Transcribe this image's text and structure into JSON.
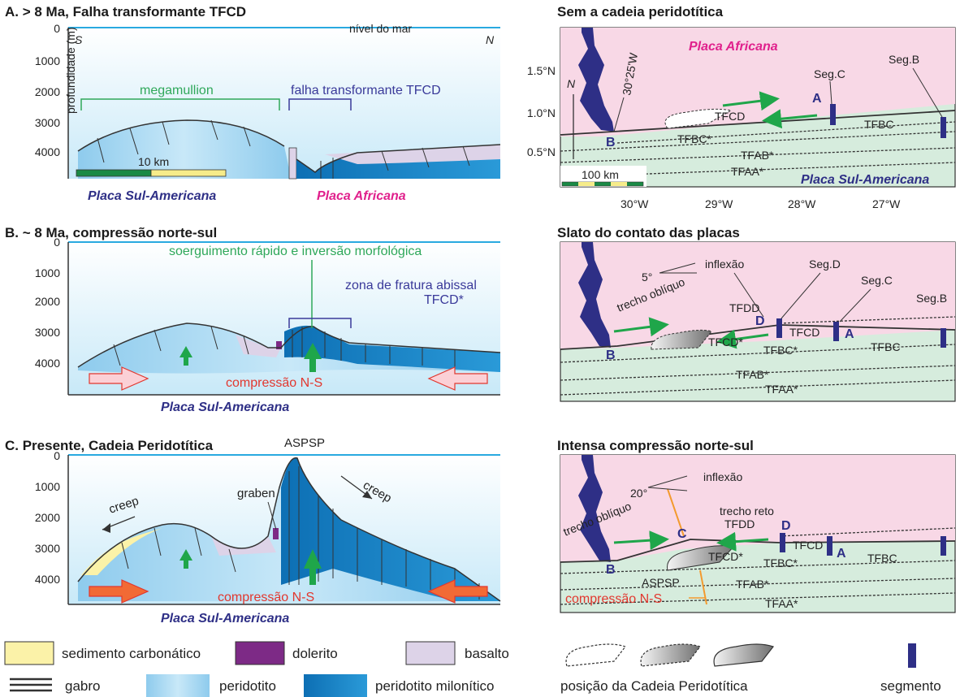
{
  "panel_a": {
    "title": "A. > 8 Ma, Falha transformante TFCD",
    "ylabel": "profundidade (m)",
    "yticks": [
      "0",
      "1000",
      "2000",
      "3000",
      "4000"
    ],
    "south": "S",
    "north": "N",
    "sea_level": "nível do mar",
    "megamullion": "megamullion",
    "fault": "falha transformante TFCD",
    "scale": "10 km",
    "plate_left": "Placa Sul-Americana",
    "plate_right": "Placa Africana"
  },
  "panel_b": {
    "title": "B. ~ 8 Ma, compressão norte-sul",
    "yticks": [
      "0",
      "1000",
      "2000",
      "3000",
      "4000"
    ],
    "uplift": "soerguimento rápido e inversão morfológica",
    "fracture_zone_1": "zona de fratura abissal",
    "fracture_zone_2": "TFCD*",
    "compression": "compressão N-S",
    "plate": "Placa Sul-Americana"
  },
  "panel_c": {
    "title": "C. Presente, Cadeia Peridotítica",
    "peak": "ASPSP",
    "yticks": [
      "0",
      "1000",
      "2000",
      "3000",
      "4000"
    ],
    "creep_left": "creep",
    "creep_right": "creep",
    "graben": "graben",
    "compression": "compressão N-S",
    "plate": "Placa Sul-Americana"
  },
  "map_a": {
    "title": "Sem a cadeia peridotítica",
    "plate_top": "Placa Africana",
    "plate_bottom": "Placa Sul-Americana",
    "lat_ticks": [
      "1.5°N",
      "1.0°N",
      "0.5°N"
    ],
    "lon_ticks": [
      "30°W",
      "29°W",
      "28°W",
      "27°W"
    ],
    "meridian": "30°25'W",
    "north": "N",
    "scale": "100 km",
    "seg_c": "Seg.C",
    "seg_b": "Seg.B",
    "pt_a": "A",
    "pt_b": "B",
    "tfcd": "TFCD",
    "tfbc_star": "TFBC*",
    "tfbc": "TFBC",
    "tfab_star": "TFAB*",
    "tfaa_star": "TFAA*"
  },
  "map_b": {
    "title": "Slato do contato das placas",
    "angle": "5°",
    "inflexao": "inflexão",
    "seg_d": "Seg.D",
    "seg_c": "Seg.C",
    "seg_b": "Seg.B",
    "trecho": "trecho oblíquo",
    "tfdd": "TFDD",
    "tfcd": "TFCD",
    "tfcd_star": "TFCD*",
    "tfbc_star": "TFBC*",
    "tfbc": "TFBC",
    "tfab_star": "TFAB*",
    "tfaa_star": "TFAA*",
    "pt_d": "D",
    "pt_a": "A",
    "pt_b": "B"
  },
  "map_c": {
    "title": "Intensa compressão norte-sul",
    "angle": "20°",
    "inflexao": "inflexão",
    "trecho_obliquo": "trecho oblíquo",
    "trecho_reto": "trecho reto",
    "tfdd": "TFDD",
    "tfcd": "TFCD",
    "tfcd_star": "TFCD*",
    "tfbc_star": "TFBC*",
    "tfbc": "TFBC",
    "tfab_star": "TFAB*",
    "tfaa_star": "TFAA*",
    "aspsp": "ASPSP",
    "compression": "compressão N-S",
    "pt_c": "C",
    "pt_d": "D",
    "pt_a": "A",
    "pt_b": "B"
  },
  "legend": {
    "carbonate": "sedimento carbonático",
    "dolerite": "dolerito",
    "basalt": "basalto",
    "gabbro": "gabro",
    "peridotite": "peridotito",
    "mylonitic": "peridotito milonítico",
    "chain_position": "posição da Cadeia Peridotítica",
    "segment": "segmento"
  },
  "colors": {
    "sea": "#d9f0fb",
    "peridotite": "#a9d8f2",
    "mylonitic": "#1a86c8",
    "basalt": "#ddd3e8",
    "dolerite": "#7d2a86",
    "carbonate": "#fbf2a8",
    "africa": "#f8d8e6",
    "south_america": "#d6ecdd",
    "green_arrow": "#1fa64a",
    "segment": "#2e2f86"
  }
}
